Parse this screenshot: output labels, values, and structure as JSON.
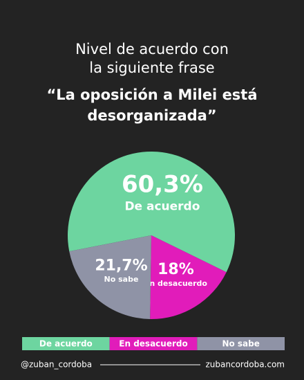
{
  "chart_data": {
    "type": "pie",
    "title": "Nivel de acuerdo con la siguiente frase",
    "subtitle": "“La oposición a Milei está desorganizada”",
    "categories": [
      "De acuerdo",
      "En desacuerdo",
      "No sabe"
    ],
    "values": [
      60.3,
      18,
      21.7
    ],
    "value_labels": [
      "60,3%",
      "18%",
      "21,7%"
    ],
    "colors": [
      "#6dd5a0",
      "#e11cba",
      "#8f93a6"
    ]
  },
  "footer": {
    "left": "@zuban_cordoba",
    "right": "zubancordoba.com"
  }
}
